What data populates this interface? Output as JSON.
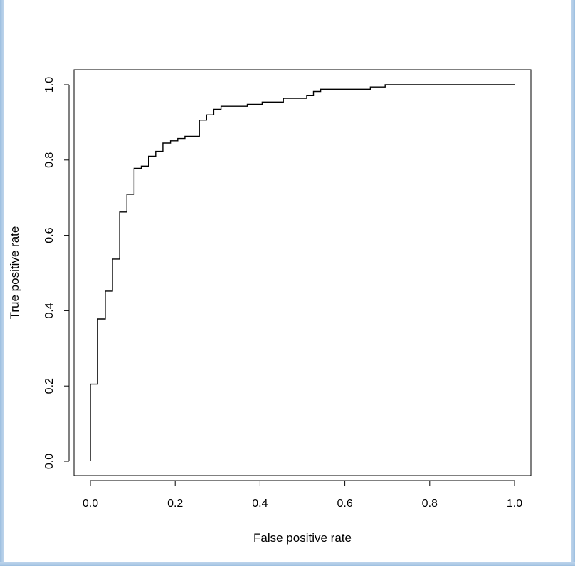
{
  "chart_data": {
    "type": "line",
    "xlabel": "False positive rate",
    "ylabel": "True positive rate",
    "xlim": [
      0,
      1
    ],
    "ylim": [
      0,
      1
    ],
    "x_ticks": [
      "0.0",
      "0.2",
      "0.4",
      "0.6",
      "0.8",
      "1.0"
    ],
    "y_ticks": [
      "0.0",
      "0.2",
      "0.4",
      "0.6",
      "0.8",
      "1.0"
    ],
    "grid": false,
    "line_color": "#000000",
    "series": [
      {
        "x": [
          0.0,
          0.0,
          0.017,
          0.017,
          0.035,
          0.035,
          0.052,
          0.052,
          0.069,
          0.069,
          0.086,
          0.086,
          0.103,
          0.103,
          0.12,
          0.12,
          0.137,
          0.137,
          0.154,
          0.154,
          0.171,
          0.171,
          0.189,
          0.189,
          0.206,
          0.206,
          0.223,
          0.223,
          0.257,
          0.257,
          0.274,
          0.274,
          0.291,
          0.291,
          0.308,
          0.308,
          0.37,
          0.37,
          0.405,
          0.405,
          0.455,
          0.455,
          0.51,
          0.51,
          0.526,
          0.526,
          0.543,
          0.543,
          0.66,
          0.66,
          0.695,
          0.695,
          1.0
        ],
        "y": [
          0.0,
          0.205,
          0.205,
          0.378,
          0.378,
          0.452,
          0.452,
          0.537,
          0.537,
          0.662,
          0.662,
          0.709,
          0.709,
          0.778,
          0.778,
          0.784,
          0.784,
          0.81,
          0.81,
          0.823,
          0.823,
          0.845,
          0.845,
          0.851,
          0.851,
          0.857,
          0.857,
          0.863,
          0.863,
          0.906,
          0.906,
          0.92,
          0.92,
          0.935,
          0.935,
          0.943,
          0.943,
          0.948,
          0.948,
          0.954,
          0.954,
          0.964,
          0.964,
          0.971,
          0.971,
          0.982,
          0.982,
          0.988,
          0.988,
          0.994,
          0.994,
          1.0,
          1.0
        ]
      }
    ]
  }
}
